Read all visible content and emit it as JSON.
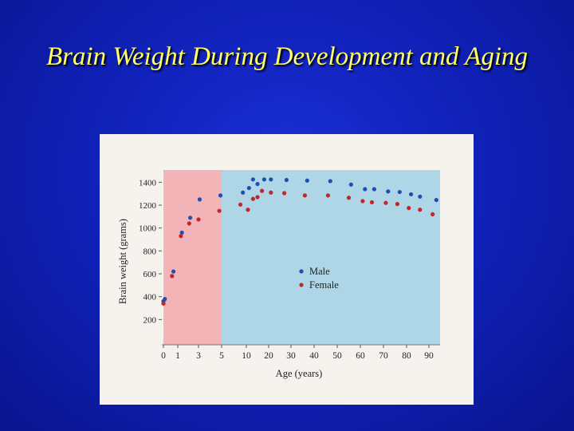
{
  "slide": {
    "title": "Brain Weight During Development and Aging"
  },
  "colors": {
    "background": "#1428c8",
    "title": "#ffff66",
    "development_band": "#f2b4b7",
    "aging_band": "#aed6e6",
    "male": "#1f4fb0",
    "female": "#c0262c"
  },
  "chart_data": {
    "type": "scatter",
    "title": "",
    "xlabel": "Age (years)",
    "ylabel": "Brain weight (grams)",
    "x_ticks": [
      {
        "label": "0",
        "value": 0
      },
      {
        "label": "1",
        "value": 1
      },
      {
        "label": "3",
        "value": 3
      },
      {
        "label": "5",
        "value": 5
      },
      {
        "label": "10",
        "value": 10
      },
      {
        "label": "20",
        "value": 20
      },
      {
        "label": "30",
        "value": 30
      },
      {
        "label": "40",
        "value": 40
      },
      {
        "label": "50",
        "value": 50
      },
      {
        "label": "60",
        "value": 60
      },
      {
        "label": "70",
        "value": 70
      },
      {
        "label": "80",
        "value": 80
      },
      {
        "label": "90",
        "value": 90
      }
    ],
    "y_ticks": [
      200,
      400,
      600,
      800,
      1000,
      1200,
      1400
    ],
    "ylim": [
      0,
      1500
    ],
    "x_scale": "piecewise (0–5 stretched, 5–90 compressed)",
    "shaded_regions": [
      {
        "from": 0,
        "to": 5,
        "color": "development_band"
      },
      {
        "from": 5,
        "to": 93,
        "color": "aging_band"
      }
    ],
    "legend": {
      "position": "center",
      "entries": [
        "Male",
        "Female"
      ]
    },
    "series": [
      {
        "name": "Male",
        "color": "#1f4fb0",
        "points": [
          [
            0.0,
            360
          ],
          [
            0.1,
            380
          ],
          [
            0.7,
            620
          ],
          [
            1.4,
            960
          ],
          [
            2.2,
            1090
          ],
          [
            3.1,
            1250
          ],
          [
            4.9,
            1285
          ],
          [
            9.3,
            1310
          ],
          [
            11.2,
            1350
          ],
          [
            13,
            1425
          ],
          [
            15,
            1385
          ],
          [
            18,
            1425
          ],
          [
            21,
            1425
          ],
          [
            28,
            1420
          ],
          [
            37,
            1415
          ],
          [
            47,
            1410
          ],
          [
            56,
            1380
          ],
          [
            62,
            1340
          ],
          [
            66,
            1340
          ],
          [
            72,
            1320
          ],
          [
            77,
            1315
          ],
          [
            82,
            1295
          ],
          [
            86,
            1275
          ],
          [
            92,
            1245
          ]
        ]
      },
      {
        "name": "Female",
        "color": "#c0262c",
        "points": [
          [
            0.0,
            340
          ],
          [
            0.6,
            580
          ],
          [
            1.3,
            930
          ],
          [
            2.1,
            1040
          ],
          [
            3.0,
            1075
          ],
          [
            4.8,
            1150
          ],
          [
            8.8,
            1205
          ],
          [
            10.7,
            1160
          ],
          [
            13,
            1255
          ],
          [
            15,
            1270
          ],
          [
            17,
            1325
          ],
          [
            21,
            1310
          ],
          [
            27,
            1305
          ],
          [
            36,
            1285
          ],
          [
            46,
            1285
          ],
          [
            55,
            1265
          ],
          [
            61,
            1235
          ],
          [
            65,
            1225
          ],
          [
            71,
            1220
          ],
          [
            76,
            1210
          ],
          [
            81,
            1175
          ],
          [
            86,
            1160
          ],
          [
            91,
            1120
          ]
        ]
      }
    ]
  }
}
